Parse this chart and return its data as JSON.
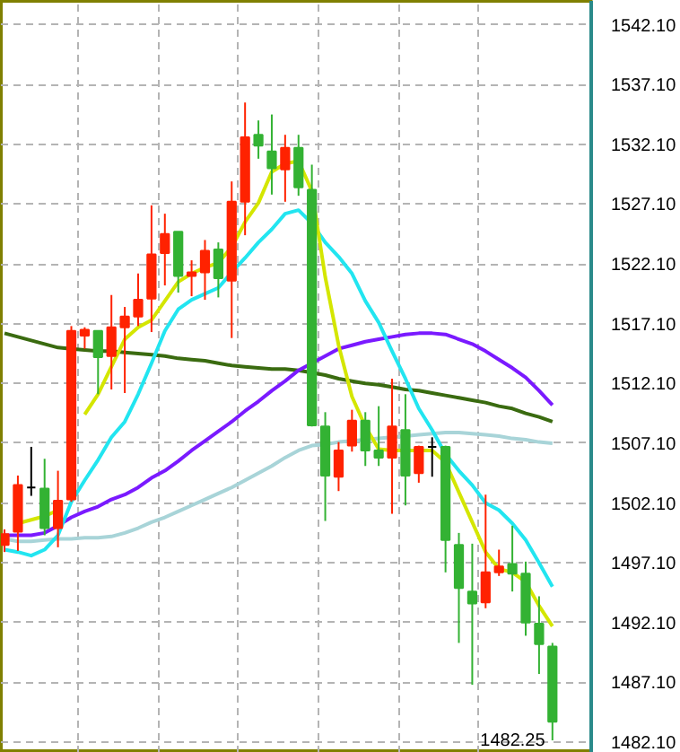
{
  "chart_data": {
    "type": "candlestick",
    "categories": [
      null,
      null,
      null,
      null,
      null,
      null,
      null,
      null,
      null,
      null,
      null,
      null,
      null,
      null,
      null,
      null,
      null,
      null,
      null,
      null,
      null,
      null,
      null,
      null,
      null,
      null,
      null,
      null,
      null,
      null,
      null,
      null,
      null,
      null,
      null,
      null,
      null,
      null,
      null,
      null,
      null,
      null
    ],
    "ohlc": [
      [
        1498.6,
        1499.9,
        1498.0,
        1499.5
      ],
      [
        1499.7,
        1504.4,
        1498.1,
        1503.6
      ],
      [
        1503.4,
        1506.8,
        1502.7,
        1503.4
      ],
      [
        1503.3,
        1505.8,
        1499.4,
        1500.0
      ],
      [
        1500.0,
        1504.8,
        1498.4,
        1502.3
      ],
      [
        1502.4,
        1516.9,
        1502.2,
        1516.5
      ],
      [
        1516.1,
        1516.8,
        1515.0,
        1516.6
      ],
      [
        1516.5,
        1516.5,
        1511.2,
        1514.3
      ],
      [
        1514.4,
        1519.5,
        1511.6,
        1516.8
      ],
      [
        1516.8,
        1518.5,
        1511.3,
        1517.7
      ],
      [
        1517.7,
        1521.3,
        1516.9,
        1519.1
      ],
      [
        1519.2,
        1527.0,
        1516.4,
        1522.9
      ],
      [
        1523.0,
        1526.3,
        1520.3,
        1524.6
      ],
      [
        1524.8,
        1524.8,
        1519.7,
        1521.1
      ],
      [
        1521.1,
        1522.4,
        1519.4,
        1521.4
      ],
      [
        1521.4,
        1524.1,
        1519.1,
        1523.2
      ],
      [
        1523.3,
        1523.9,
        1519.3,
        1520.9
      ],
      [
        1520.7,
        1529.0,
        1515.9,
        1527.3
      ],
      [
        1527.3,
        1535.6,
        1524.5,
        1532.7
      ],
      [
        1532.9,
        1534.1,
        1530.9,
        1532.0
      ],
      [
        1531.5,
        1534.6,
        1527.9,
        1530.1
      ],
      [
        1530.0,
        1532.9,
        1527.3,
        1531.8
      ],
      [
        1531.8,
        1532.9,
        1527.8,
        1528.5
      ],
      [
        1528.3,
        1530.4,
        1508.5,
        1508.6
      ],
      [
        1508.5,
        1509.7,
        1500.6,
        1504.4
      ],
      [
        1504.3,
        1507.2,
        1503.1,
        1506.5
      ],
      [
        1506.9,
        1509.9,
        1506.4,
        1509.0
      ],
      [
        1509.0,
        1509.7,
        1505.2,
        1506.5
      ],
      [
        1506.5,
        1510.2,
        1505.2,
        1505.9
      ],
      [
        1505.9,
        1512.5,
        1501.2,
        1508.5
      ],
      [
        1508.2,
        1511.2,
        1501.9,
        1504.4
      ],
      [
        1504.6,
        1506.9,
        1503.8,
        1506.8
      ],
      [
        1506.8,
        1507.6,
        1504.3,
        1506.8
      ],
      [
        1506.8,
        1506.9,
        1496.3,
        1499.0
      ],
      [
        1498.6,
        1499.6,
        1490.4,
        1495.0
      ],
      [
        1494.7,
        1498.7,
        1486.9,
        1493.7
      ],
      [
        1493.8,
        1502.8,
        1493.3,
        1496.3
      ],
      [
        1496.3,
        1498.2,
        1496.0,
        1496.8
      ],
      [
        1497.0,
        1500.2,
        1494.7,
        1496.2
      ],
      [
        1496.2,
        1497.2,
        1491.0,
        1492.1
      ],
      [
        1492.0,
        1494.3,
        1487.8,
        1490.3
      ],
      [
        1490.1,
        1490.4,
        1482.25,
        1483.8
      ]
    ],
    "colors": [
      "#ff2200",
      "#ff2200",
      "#000000",
      "#33b233",
      "#ff2200",
      "#ff2200",
      "#ff2200",
      "#33b233",
      "#ff2200",
      "#ff2200",
      "#ff2200",
      "#ff2200",
      "#ff2200",
      "#33b233",
      "#ff2200",
      "#ff2200",
      "#33b233",
      "#ff2200",
      "#ff2200",
      "#33b233",
      "#33b233",
      "#ff2200",
      "#33b233",
      "#33b233",
      "#33b233",
      "#ff2200",
      "#ff2200",
      "#33b233",
      "#33b233",
      "#ff2200",
      "#33b233",
      "#ff2200",
      "#000000",
      "#33b233",
      "#33b233",
      "#33b233",
      "#ff2200",
      "#ff2200",
      "#33b233",
      "#33b233",
      "#33b233",
      "#33b233"
    ],
    "series": [
      {
        "type": "line",
        "color": "#a8d4d8",
        "values": [
          1499.1,
          1498.9,
          1498.9,
          1499.0,
          1499.1,
          1499.1,
          1499.2,
          1499.2,
          1499.3,
          1499.6,
          1500.0,
          1500.5,
          1500.9,
          1501.4,
          1501.9,
          1502.4,
          1502.9,
          1503.4,
          1504.0,
          1504.6,
          1505.2,
          1505.9,
          1506.5,
          1506.9,
          1507.0,
          1507.2,
          1507.3,
          1507.4,
          1507.5,
          1507.6,
          1507.7,
          1507.8,
          1507.9,
          1508.0,
          1508.0,
          1507.9,
          1507.8,
          1507.7,
          1507.5,
          1507.4,
          1507.2,
          1507.1
        ]
      },
      {
        "type": "line",
        "color": "#3a6b10",
        "values": [
          1516.3,
          1516.0,
          1515.7,
          1515.4,
          1515.1,
          1515.0,
          1514.9,
          1514.8,
          1514.8,
          1514.7,
          1514.6,
          1514.5,
          1514.4,
          1514.2,
          1514.1,
          1514.0,
          1513.8,
          1513.6,
          1513.5,
          1513.4,
          1513.3,
          1513.3,
          1513.2,
          1513.0,
          1512.8,
          1512.5,
          1512.3,
          1512.1,
          1512.0,
          1511.8,
          1511.6,
          1511.5,
          1511.3,
          1511.1,
          1510.9,
          1510.7,
          1510.5,
          1510.2,
          1510.0,
          1509.6,
          1509.3,
          1508.9
        ]
      },
      {
        "type": "line",
        "color": "#7a1aff",
        "values": [
          1499.4,
          1499.4,
          1499.4,
          1499.6,
          1500.2,
          1500.9,
          1501.4,
          1501.8,
          1502.4,
          1502.8,
          1503.4,
          1504.2,
          1504.8,
          1505.6,
          1506.5,
          1507.3,
          1508.1,
          1508.9,
          1509.8,
          1510.6,
          1511.5,
          1512.3,
          1513.2,
          1513.8,
          1514.4,
          1515.0,
          1515.3,
          1515.6,
          1515.8,
          1516.0,
          1516.2,
          1516.3,
          1516.3,
          1516.2,
          1515.8,
          1515.4,
          1514.8,
          1514.1,
          1513.4,
          1512.6,
          1511.5,
          1510.3
        ]
      },
      {
        "type": "line",
        "color": "#22e5f0",
        "values": [
          1498.2,
          1498.0,
          1497.7,
          1498.2,
          1499.4,
          1502.2,
          1504.0,
          1505.7,
          1507.6,
          1508.9,
          1511.2,
          1513.8,
          1516.5,
          1518.3,
          1519.1,
          1519.6,
          1520.1,
          1521.4,
          1522.6,
          1523.9,
          1525.0,
          1526.3,
          1526.6,
          1525.5,
          1523.9,
          1522.7,
          1521.3,
          1519.0,
          1517.2,
          1514.8,
          1512.5,
          1510.0,
          1508.2,
          1506.2,
          1504.8,
          1503.6,
          1502.1,
          1501.5,
          1500.4,
          1499.0,
          1497.1,
          1495.1
        ]
      },
      {
        "type": "line",
        "color": "#d4e600",
        "values": [
          null,
          1500.4,
          1500.7,
          1501.0,
          1501.5,
          null,
          1509.5,
          1511.2,
          1513.5,
          1515.8,
          1516.8,
          1517.4,
          1519.0,
          1520.6,
          1521.3,
          1521.8,
          1522.2,
          1523.5,
          1525.6,
          1527.2,
          1529.8,
          1530.5,
          1530.7,
          1528.2,
          1521.0,
          1515.3,
          1511.0,
          1508.5,
          1506.6,
          1506.5,
          1506.5,
          1506.5,
          1506.5,
          1505.5,
          1503.0,
          1500.5,
          1498.0,
          1496.6,
          1496.3,
          1495.5,
          1493.5,
          1491.8
        ]
      }
    ],
    "ylim": [
      1481.2,
      1544.1
    ],
    "yticks": [
      {
        "value": 1542.1,
        "label": "1542.10"
      },
      {
        "value": 1537.1,
        "label": "1537.10"
      },
      {
        "value": 1532.1,
        "label": "1532.10"
      },
      {
        "value": 1527.1,
        "label": "1527.10"
      },
      {
        "value": 1522.1,
        "label": "1522.10"
      },
      {
        "value": 1517.1,
        "label": "1517.10"
      },
      {
        "value": 1512.1,
        "label": "1512.10"
      },
      {
        "value": 1507.1,
        "label": "1507.10"
      },
      {
        "value": 1502.1,
        "label": "1502.10"
      },
      {
        "value": 1497.1,
        "label": "1497.10"
      },
      {
        "value": 1492.1,
        "label": "1492.10"
      },
      {
        "value": 1487.1,
        "label": "1487.10"
      },
      {
        "value": 1482.1,
        "label": "1482.10"
      }
    ],
    "annotations": [
      "1482.25"
    ],
    "grid": true,
    "tick_labels": "y"
  }
}
